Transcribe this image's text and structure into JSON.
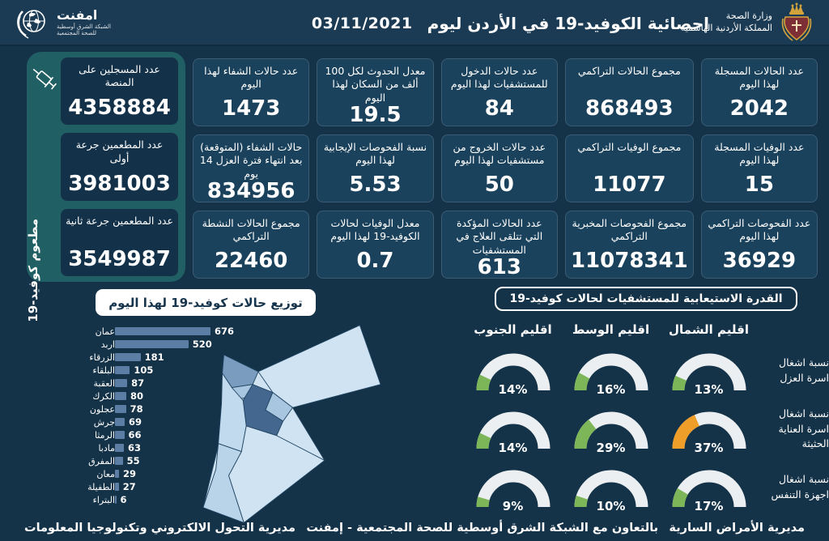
{
  "header": {
    "title": "احصائية الكوفيد-19 في الأردن ليوم",
    "date": "03/11/2021",
    "logo_name": "امفنت",
    "logo_sub1": "الشبكة الشرق أوسطية",
    "logo_sub2": "للصحة المجتمعية",
    "ministry_line1": "وزارة الصحة",
    "ministry_line2": "المملكة الأردنية الهاشمية"
  },
  "stats": {
    "columns": [
      {
        "cards": [
          {
            "label": "عدد الحالات المسجلة لهذا اليوم",
            "value": "2042"
          },
          {
            "label": "عدد الوفيات المسجلة لهذا اليوم",
            "value": "15"
          },
          {
            "label": "عدد الفحوصات التراكمي لهذا اليوم",
            "value": "36929"
          }
        ]
      },
      {
        "cards": [
          {
            "label": "مجموع الحالات التراكمي",
            "value": "868493"
          },
          {
            "label": "مجموع الوفيات التراكمي",
            "value": "11077"
          },
          {
            "label": "مجموع الفحوصات المخبرية التراكمي",
            "value": "11078341"
          }
        ]
      },
      {
        "cards": [
          {
            "label": "عدد حالات الدخول للمستشفيات لهذا اليوم",
            "value": "84"
          },
          {
            "label": "عدد حالات الخروج من مستشفيات لهذا اليوم",
            "value": "50"
          },
          {
            "label": "عدد الحالات المؤكدة التي تتلقى العلاج في المستشفيات",
            "value": "613"
          }
        ]
      },
      {
        "cards": [
          {
            "label": "معدل الحدوث لكل 100 ألف من السكان لهذا اليوم",
            "value": "19.5"
          },
          {
            "label": "نسبة الفحوصات الإيجابية لهذا اليوم",
            "value": "5.53"
          },
          {
            "label": "معدل الوفيات لحالات الكوفيد-19 لهذا اليوم",
            "value": "0.7"
          }
        ]
      },
      {
        "cards": [
          {
            "label": "عدد حالات الشفاء لهذا اليوم",
            "value": "1473"
          },
          {
            "label": "حالات الشفاء (المتوقعة) بعد انتهاء فترة العزل 14 يوم",
            "value": "834956"
          },
          {
            "label": "مجموع الحالات النشطة التراكمي",
            "value": "22460"
          }
        ]
      }
    ]
  },
  "vaccine_panel": {
    "side_label": "مطعوم كوفيد-19",
    "cards": [
      {
        "label": "عدد المسجلين على المنصة",
        "value": "4358884"
      },
      {
        "label": "عدد المطعمين جرعة أولى",
        "value": "3981003"
      },
      {
        "label": "عدد المطعمين جرعة ثانية",
        "value": "3549987"
      }
    ]
  },
  "footer": {
    "right": "مديرية الأمراض السارية",
    "center": "بالتعاون مع الشبكة الشرق أوسطية للصحة المجتمعية - إمفنت",
    "left": "مديرية التحول الالكتروني وتكنولوجيا المعلومات"
  },
  "colors": {
    "background_navy": "#143248",
    "header_navy": "#1b3b54",
    "card_navy": "#1b425c",
    "teal_panel": "#205f63",
    "bar_blue": "#5d7ea4",
    "gauge_green": "#7cb658",
    "gauge_orange": "#f09e2a",
    "gauge_track": "#eceff1"
  },
  "chart_data": [
    {
      "type": "bar",
      "orientation": "horizontal",
      "title": "توزيع حالات كوفيد-19 لهذا اليوم",
      "categories": [
        "عمان",
        "اربد",
        "الزرقاء",
        "البلقاء",
        "العقبة",
        "الكرك",
        "عجلون",
        "جرش",
        "الرمثا",
        "مادبا",
        "المفرق",
        "معان",
        "الطفيلة",
        "البتراء"
      ],
      "values": [
        676,
        520,
        181,
        105,
        87,
        80,
        78,
        69,
        66,
        63,
        55,
        29,
        27,
        6
      ],
      "xlim": [
        0,
        700
      ],
      "grid": false,
      "legend": "none"
    },
    {
      "type": "gauge",
      "title": "القدرة الاستيعابية للمستشفيات لحالات كوفيد-19",
      "unit": "%",
      "columns": [
        "اقليم الشمال",
        "اقليم الوسط",
        "اقليم الجنوب"
      ],
      "rows": [
        {
          "label": "نسبة اشغال اسرة العزل",
          "values": [
            13,
            16,
            14
          ],
          "colors": [
            "#7cb658",
            "#7cb658",
            "#7cb658"
          ]
        },
        {
          "label": "نسبة اشغال اسرة العناية الحثيثة",
          "values": [
            37,
            29,
            14
          ],
          "colors": [
            "#f09e2a",
            "#7cb658",
            "#7cb658"
          ]
        },
        {
          "label": "نسبة اشغال اجهزة التنفس",
          "values": [
            17,
            10,
            9
          ],
          "colors": [
            "#7cb658",
            "#7cb658",
            "#7cb658"
          ]
        }
      ]
    }
  ]
}
